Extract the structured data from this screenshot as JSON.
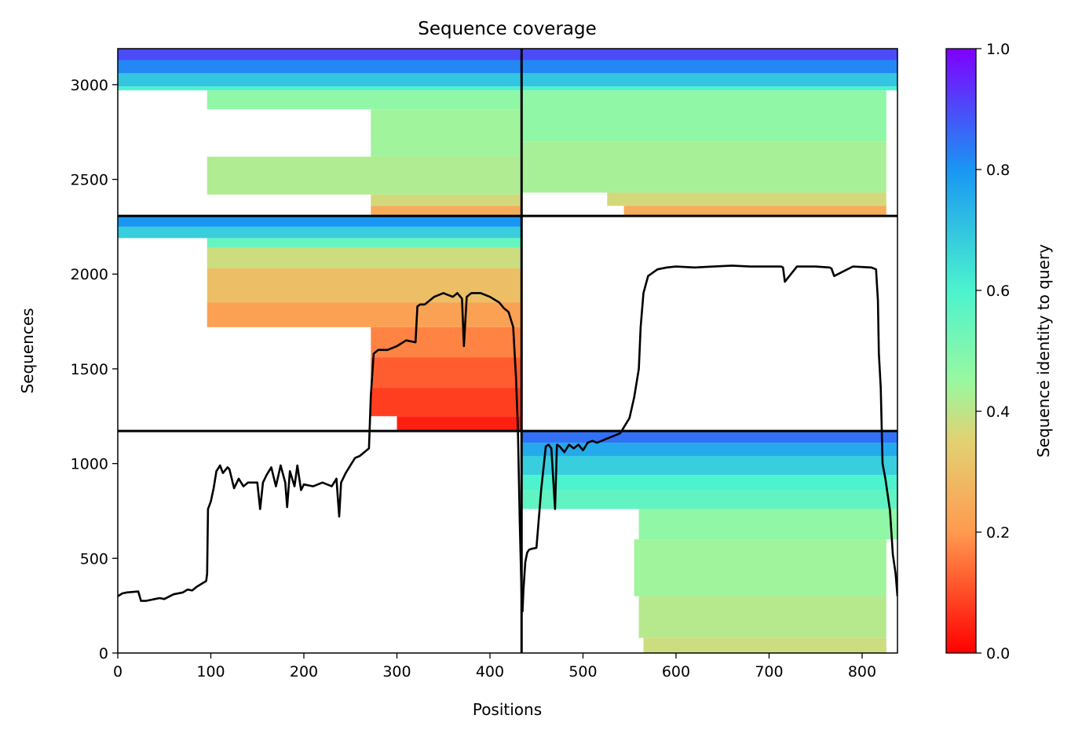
{
  "chart_data": {
    "type": "heatmap",
    "title": "Sequence coverage",
    "xlabel": "Positions",
    "ylabel": "Sequences",
    "xlim": [
      0,
      838
    ],
    "ylim": [
      0,
      3190
    ],
    "xticks": [
      0,
      100,
      200,
      300,
      400,
      500,
      600,
      700,
      800
    ],
    "yticks": [
      0,
      500,
      1000,
      1500,
      2000,
      2500,
      3000
    ],
    "colorbar": {
      "label": "Sequence identity to query",
      "range": [
        0.0,
        1.0
      ],
      "ticks": [
        0.0,
        0.2,
        0.4,
        0.6,
        0.8,
        1.0
      ],
      "tick_labels": [
        "0.0",
        "0.2",
        "0.4",
        "0.6",
        "0.8",
        "1.0"
      ],
      "colormap": "rainbow_r",
      "stops": [
        {
          "v": 0.0,
          "c": "#ff0000"
        },
        {
          "v": 0.2,
          "c": "#ff9a4f"
        },
        {
          "v": 0.35,
          "c": "#e2d172"
        },
        {
          "v": 0.45,
          "c": "#99f8a0"
        },
        {
          "v": 0.6,
          "c": "#4cf3ce"
        },
        {
          "v": 0.8,
          "c": "#1996f3"
        },
        {
          "v": 1.0,
          "c": "#7f00ff"
        }
      ]
    },
    "chain_boundaries": {
      "x": [
        434
      ],
      "y": [
        1172,
        2307
      ]
    },
    "blocks": [
      {
        "name": "chain1-self",
        "x_range": [
          0,
          434
        ],
        "y_range": [
          2307,
          3190
        ],
        "bands": [
          {
            "y": [
              3130,
              3190
            ],
            "x": [
              0,
              434
            ],
            "identity": 0.9
          },
          {
            "y": [
              3060,
              3130
            ],
            "x": [
              0,
              434
            ],
            "identity": 0.82
          },
          {
            "y": [
              2990,
              3060
            ],
            "x": [
              0,
              434
            ],
            "identity": 0.7
          },
          {
            "y": [
              2970,
              2990
            ],
            "x": [
              0,
              434
            ],
            "identity": 0.6
          },
          {
            "y": [
              2870,
              2970
            ],
            "x": [
              96,
              434
            ],
            "identity": 0.47
          },
          {
            "y": [
              2620,
              2870
            ],
            "x": [
              272,
              434
            ],
            "identity": 0.44
          },
          {
            "y": [
              2420,
              2620
            ],
            "x": [
              96,
              434
            ],
            "identity": 0.42
          },
          {
            "y": [
              2360,
              2420
            ],
            "x": [
              272,
              434
            ],
            "identity": 0.37
          },
          {
            "y": [
              2307,
              2360
            ],
            "x": [
              272,
              434
            ],
            "identity": 0.25
          }
        ]
      },
      {
        "name": "chain1-chain2",
        "x_range": [
          434,
          838
        ],
        "y_range": [
          2307,
          3190
        ],
        "bands": [
          {
            "y": [
              3130,
              3190
            ],
            "x": [
              434,
              838
            ],
            "identity": 0.9
          },
          {
            "y": [
              3060,
              3130
            ],
            "x": [
              434,
              838
            ],
            "identity": 0.82
          },
          {
            "y": [
              2990,
              3060
            ],
            "x": [
              434,
              838
            ],
            "identity": 0.7
          },
          {
            "y": [
              2970,
              2990
            ],
            "x": [
              434,
              838
            ],
            "identity": 0.6
          },
          {
            "y": [
              2700,
              2970
            ],
            "x": [
              434,
              826
            ],
            "identity": 0.47
          },
          {
            "y": [
              2430,
              2700
            ],
            "x": [
              434,
              826
            ],
            "identity": 0.43
          },
          {
            "y": [
              2360,
              2430
            ],
            "x": [
              526,
              826
            ],
            "identity": 0.37
          },
          {
            "y": [
              2307,
              2360
            ],
            "x": [
              544,
              826
            ],
            "identity": 0.25
          }
        ]
      },
      {
        "name": "chain2-chain1",
        "x_range": [
          0,
          434
        ],
        "y_range": [
          1172,
          2307
        ],
        "bands": [
          {
            "y": [
              2250,
              2307
            ],
            "x": [
              0,
              434
            ],
            "identity": 0.8
          },
          {
            "y": [
              2190,
              2250
            ],
            "x": [
              0,
              434
            ],
            "identity": 0.68
          },
          {
            "y": [
              2140,
              2190
            ],
            "x": [
              96,
              434
            ],
            "identity": 0.55
          },
          {
            "y": [
              2030,
              2140
            ],
            "x": [
              96,
              434
            ],
            "identity": 0.38
          },
          {
            "y": [
              1850,
              2030
            ],
            "x": [
              96,
              434
            ],
            "identity": 0.3
          },
          {
            "y": [
              1720,
              1850
            ],
            "x": [
              96,
              434
            ],
            "identity": 0.22
          },
          {
            "y": [
              1560,
              1720
            ],
            "x": [
              272,
              434
            ],
            "identity": 0.17
          },
          {
            "y": [
              1400,
              1560
            ],
            "x": [
              272,
              434
            ],
            "identity": 0.12
          },
          {
            "y": [
              1250,
              1400
            ],
            "x": [
              272,
              434
            ],
            "identity": 0.08
          },
          {
            "y": [
              1172,
              1250
            ],
            "x": [
              300,
              434
            ],
            "identity": 0.04
          }
        ]
      },
      {
        "name": "chain2-self",
        "x_range": [
          434,
          838
        ],
        "y_range": [
          0,
          1172
        ],
        "bands": [
          {
            "y": [
              1110,
              1172
            ],
            "x": [
              434,
              838
            ],
            "identity": 0.85
          },
          {
            "y": [
              1040,
              1110
            ],
            "x": [
              434,
              838
            ],
            "identity": 0.76
          },
          {
            "y": [
              940,
              1040
            ],
            "x": [
              434,
              838
            ],
            "identity": 0.68
          },
          {
            "y": [
              860,
              940
            ],
            "x": [
              434,
              838
            ],
            "identity": 0.6
          },
          {
            "y": [
              760,
              860
            ],
            "x": [
              434,
              838
            ],
            "identity": 0.56
          },
          {
            "y": [
              600,
              760
            ],
            "x": [
              560,
              838
            ],
            "identity": 0.47
          },
          {
            "y": [
              300,
              600
            ],
            "x": [
              555,
              826
            ],
            "identity": 0.44
          },
          {
            "y": [
              80,
              300
            ],
            "x": [
              560,
              826
            ],
            "identity": 0.41
          },
          {
            "y": [
              0,
              80
            ],
            "x": [
              565,
              826
            ],
            "identity": 0.38
          }
        ]
      }
    ],
    "coverage_line": {
      "color": "#000000",
      "x": [
        0,
        5,
        10,
        22,
        25,
        30,
        40,
        45,
        50,
        60,
        70,
        75,
        80,
        85,
        90,
        95,
        96,
        97,
        100,
        103,
        106,
        110,
        113,
        118,
        120,
        125,
        130,
        135,
        140,
        150,
        153,
        156,
        160,
        165,
        170,
        175,
        180,
        182,
        185,
        190,
        193,
        197,
        200,
        210,
        220,
        230,
        235,
        238,
        240,
        245,
        250,
        255,
        260,
        265,
        270,
        272,
        275,
        280,
        290,
        300,
        310,
        320,
        322,
        325,
        330,
        340,
        350,
        360,
        365,
        370,
        372,
        375,
        380,
        390,
        400,
        410,
        415,
        420,
        425,
        428,
        430,
        432,
        434,
        435,
        436,
        438,
        440,
        442,
        445,
        450,
        455,
        460,
        463,
        466,
        470,
        472,
        475,
        480,
        485,
        490,
        495,
        500,
        505,
        510,
        515,
        520,
        525,
        530,
        535,
        540,
        545,
        550,
        555,
        560,
        562,
        565,
        570,
        580,
        590,
        600,
        620,
        640,
        660,
        680,
        700,
        713,
        715,
        717,
        730,
        750,
        765,
        767,
        770,
        790,
        810,
        815,
        817,
        818,
        820,
        822,
        825,
        830,
        833,
        836,
        838
      ],
      "y": [
        300,
        315,
        320,
        325,
        275,
        275,
        285,
        290,
        285,
        310,
        320,
        335,
        330,
        350,
        365,
        380,
        420,
        760,
        800,
        870,
        960,
        990,
        950,
        980,
        970,
        870,
        920,
        880,
        900,
        900,
        760,
        900,
        940,
        980,
        880,
        990,
        900,
        770,
        960,
        880,
        990,
        860,
        890,
        880,
        900,
        880,
        920,
        720,
        900,
        950,
        990,
        1030,
        1040,
        1060,
        1080,
        1360,
        1580,
        1600,
        1600,
        1620,
        1650,
        1640,
        1830,
        1840,
        1840,
        1880,
        1900,
        1880,
        1900,
        1870,
        1620,
        1880,
        1900,
        1900,
        1880,
        1850,
        1820,
        1800,
        1720,
        1450,
        1200,
        700,
        300,
        220,
        330,
        480,
        530,
        545,
        550,
        555,
        860,
        1090,
        1100,
        1080,
        760,
        1100,
        1090,
        1060,
        1100,
        1080,
        1100,
        1070,
        1110,
        1120,
        1110,
        1120,
        1130,
        1140,
        1150,
        1160,
        1200,
        1240,
        1350,
        1500,
        1720,
        1900,
        1990,
        2025,
        2035,
        2040,
        2035,
        2040,
        2045,
        2040,
        2040,
        2040,
        2035,
        1960,
        2040,
        2040,
        2035,
        2030,
        1990,
        2040,
        2035,
        2025,
        1860,
        1580,
        1400,
        1000,
        920,
        750,
        520,
        420,
        300,
        220
      ]
    }
  }
}
